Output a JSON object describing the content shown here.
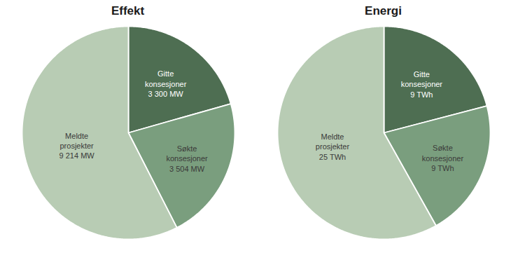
{
  "chart_data": [
    {
      "type": "pie",
      "title": "Effekt",
      "categories": [
        "Gitte\nkonsesjoner",
        "Søkte\nkonsesjoner",
        "Meldte\nprosjekter"
      ],
      "values": [
        3300,
        3504,
        9214
      ],
      "value_labels": [
        "3 300 MW",
        "3 504 MW",
        "9 214 MW"
      ],
      "colors": [
        "#4e6e52",
        "#7a9e7e",
        "#b8ccb4"
      ],
      "data_labels": true
    },
    {
      "type": "pie",
      "title": "Energi",
      "categories": [
        "Gitte\nkonsesjoner",
        "Søkte\nkonsesjoner",
        "Meldte\nprosjekter"
      ],
      "values": [
        9,
        9,
        25
      ],
      "value_labels": [
        "9 TWh",
        "9 TWh",
        "25 TWh"
      ],
      "colors": [
        "#4e6e52",
        "#7a9e7e",
        "#b8ccb4"
      ],
      "data_labels": true
    }
  ]
}
